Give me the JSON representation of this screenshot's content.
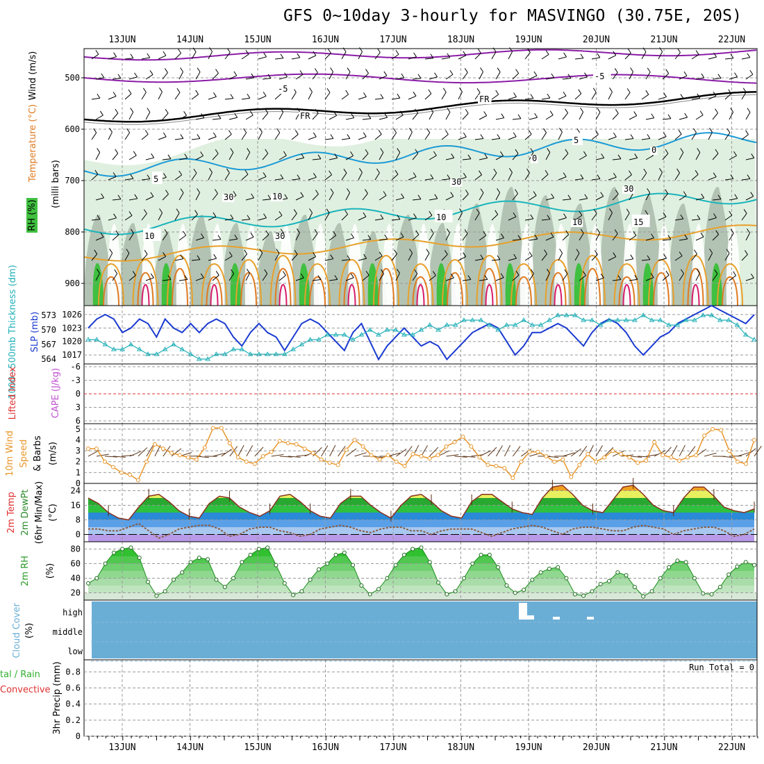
{
  "title": "GFS 0~10day 3-hourly for MASVINGO (30.75E, 20S)",
  "dates": [
    "13JUN",
    "14JUN",
    "15JUN",
    "16JUN",
    "17JUN",
    "18JUN",
    "19JUN",
    "20JUN",
    "21JUN",
    "22JUN"
  ],
  "colors": {
    "wind_barb": "#000000",
    "temp_purple": "#8a1aa6",
    "fr_line": "#000000",
    "temp_blue": "#1a9ad6",
    "temp_cyan": "#18b4bc",
    "temp_orange": "#e8a02a",
    "temp_darkorange": "#e07a20",
    "temp_red": "#d81a6a",
    "rh_light": "#e0f0e0",
    "rh_mid": "#a8b8a8",
    "rh_green": "#40c040",
    "slp_line": "#1a3ad0",
    "thk_line": "#22b0b8",
    "wind10": "#e8962a",
    "barb10": "#5a3418",
    "cloud": "#6aaed6",
    "precip_label_green": "#30b030",
    "precip_label_red": "#e03030",
    "lifted_red": "#e03030",
    "cape_violet": "#c050d0"
  },
  "panels": {
    "upper": {
      "ylabel_wind": "Wind (m/s)",
      "ylabel_temp": "Temperature (°C)",
      "ylabel_rh": "RH (%)",
      "ylabel_units": "(milli bars)",
      "yticks": [
        "500",
        "600",
        "700",
        "800",
        "900"
      ],
      "contour_labels": [
        "-5",
        "-5",
        "FR",
        "FR",
        "5",
        "5",
        "10",
        "10",
        "15",
        "0",
        "0",
        "10",
        "30",
        "30",
        "30",
        "30",
        "10"
      ]
    },
    "slp": {
      "ylabel_thk": "1000~500mb Thickness (dm)",
      "ylabel_slp": "SLP (mb)",
      "left_ticks": [
        "573",
        "570",
        "567",
        "564"
      ],
      "right_ticks": [
        "1026",
        "1023",
        "1020",
        "1017"
      ]
    },
    "cape": {
      "ylabel_li": "Lifted Index",
      "ylabel_cape": "CAPE (J/kg)",
      "ticks": [
        "-6",
        "-3",
        "0",
        "3",
        "6"
      ]
    },
    "wind10": {
      "ylabel_a": "10m Wind",
      "ylabel_b": "Speed",
      "ylabel_c": "& Barbs",
      "ylabel_d": "(m/s)",
      "ticks": [
        "5",
        "4",
        "3",
        "2",
        "1",
        "0"
      ]
    },
    "temp2m": {
      "ylabel_a": "2m Temp",
      "ylabel_b": "2m DewPt",
      "ylabel_c": "(6hr Min/Max)",
      "ylabel_d": "(°C)",
      "ticks": [
        "24",
        "16",
        "8",
        "0"
      ]
    },
    "rh2m": {
      "ylabel_a": "2m RH",
      "ylabel_b": "(%)",
      "ticks": [
        "80",
        "60",
        "40",
        "20"
      ]
    },
    "cloud": {
      "ylabel_a": "Cloud Cover",
      "ylabel_b": "(%)",
      "ticks": [
        "high",
        "middle",
        "low"
      ]
    },
    "precip": {
      "ylabel_a": "tal / Rain",
      "ylabel_b": "Convective",
      "ylabel_c": "3hr Precip (mm)",
      "ticks": [
        "0.8",
        "0.6",
        "0.4",
        "0.2",
        "0"
      ],
      "run_total": "Run Total = 0"
    }
  },
  "chart_data": [
    {
      "type": "line",
      "name": "upper-air",
      "x": [
        "13JUN",
        "14JUN",
        "15JUN",
        "16JUN",
        "17JUN",
        "18JUN",
        "19JUN",
        "20JUN",
        "21JUN",
        "22JUN"
      ],
      "ylim": [
        450,
        950
      ],
      "note_values": {
        "freezing_level_mb": [
          575,
          595,
          590,
          575,
          565,
          560,
          550,
          545,
          555,
          580
        ]
      }
    },
    {
      "type": "line",
      "name": "SLP (mb)",
      "ylim": [
        1015,
        1028
      ],
      "values": [
        1023,
        1025,
        1026,
        1025,
        1022,
        1023,
        1025,
        1024,
        1021,
        1025,
        1023,
        1022,
        1024,
        1022,
        1024,
        1025,
        1024,
        1021,
        1019,
        1022,
        1024,
        1022,
        1021,
        1018,
        1021,
        1024,
        1025,
        1024,
        1022,
        1020,
        1018,
        1022,
        1024,
        1020,
        1016,
        1019,
        1021,
        1023,
        1021,
        1019,
        1020,
        1019,
        1016,
        1018,
        1020,
        1022,
        1023,
        1024,
        1023,
        1020,
        1017,
        1019,
        1022,
        1022,
        1023,
        1024,
        1023,
        1021,
        1019,
        1022,
        1024,
        1025,
        1024,
        1022,
        1019,
        1017,
        1019,
        1021,
        1022,
        1024,
        1025,
        1026,
        1027,
        1028,
        1027,
        1026,
        1025,
        1024,
        1026
      ]
    },
    {
      "type": "line",
      "name": "1000~500mb Thickness (dm)",
      "ylim": [
        563,
        575
      ],
      "values": [
        568,
        568,
        567,
        566,
        566,
        567,
        566,
        565,
        565,
        566,
        567,
        566,
        565,
        564,
        564,
        565,
        565,
        566,
        566,
        565,
        565,
        565,
        565,
        565,
        566,
        567,
        568,
        568,
        569,
        569,
        569,
        568,
        569,
        570,
        569,
        570,
        570,
        569,
        569,
        570,
        571,
        570,
        571,
        571,
        572,
        572,
        572,
        571,
        570,
        571,
        571,
        572,
        571,
        571,
        572,
        573,
        573,
        573,
        572,
        572,
        571,
        572,
        572,
        572,
        572,
        573,
        572,
        572,
        571,
        571,
        572,
        572,
        573,
        573,
        572,
        572,
        571,
        569,
        568
      ]
    },
    {
      "type": "line",
      "name": "10m Wind Speed (m/s)",
      "ylim": [
        0,
        5.5
      ],
      "values": [
        3.2,
        3.2,
        2.0,
        1.5,
        1.0,
        0.8,
        0.3,
        2.0,
        3.6,
        3.2,
        2.8,
        2.6,
        2.4,
        2.2,
        3.3,
        5.1,
        5.1,
        3.7,
        2.4,
        2.0,
        1.8,
        2.5,
        2.9,
        3.9,
        3.7,
        3.6,
        3.2,
        2.8,
        2.2,
        1.9,
        1.7,
        3.1,
        4.0,
        3.4,
        2.6,
        2.2,
        2.6,
        2.0,
        1.6,
        2.7,
        2.5,
        2.3,
        2.6,
        3.4,
        3.8,
        4.3,
        3.4,
        2.4,
        1.7,
        1.6,
        1.4,
        0.5,
        2.0,
        2.9,
        2.9,
        2.5,
        2.0,
        2.2,
        0.6,
        1.7,
        2.7,
        2.0,
        2.4,
        3.0,
        2.7,
        2.4,
        1.9,
        2.1,
        3.8,
        2.6,
        2.4,
        2.1,
        2.4,
        2.6,
        4.4,
        5.0,
        4.9,
        3.0,
        2.0,
        1.8,
        4.0
      ]
    },
    {
      "type": "area",
      "name": "2m Temp (°C)",
      "ylim": [
        -4,
        28
      ],
      "values": [
        20,
        17,
        12,
        9,
        8,
        15,
        21,
        22,
        18,
        13,
        10,
        9,
        17,
        21,
        20,
        15,
        12,
        10,
        13,
        21,
        22,
        18,
        13,
        10,
        9,
        17,
        21,
        21,
        16,
        12,
        9,
        16,
        21,
        22,
        18,
        13,
        10,
        9,
        18,
        22,
        22,
        18,
        14,
        12,
        11,
        20,
        26,
        27,
        22,
        16,
        13,
        12,
        19,
        26,
        27,
        22,
        16,
        13,
        12,
        20,
        26,
        26,
        21,
        15,
        13,
        12,
        14
      ]
    },
    {
      "type": "line",
      "name": "2m DewPt (°C)",
      "ylim": [
        -4,
        28
      ],
      "values": [
        3,
        3,
        2,
        2,
        4,
        6,
        2,
        -2,
        0,
        3,
        4,
        5,
        5,
        3,
        -1,
        0,
        3,
        4,
        4,
        2,
        1,
        -1,
        0,
        3,
        4,
        5,
        4,
        2,
        1,
        3,
        4,
        4,
        2,
        2,
        0,
        2,
        3,
        3,
        3,
        1,
        -1,
        1,
        3,
        4,
        5,
        4,
        2,
        0,
        3,
        4,
        4,
        3,
        2,
        2,
        4,
        5,
        4,
        3,
        0,
        2,
        3,
        4,
        4,
        2,
        -1,
        0,
        3
      ]
    },
    {
      "type": "area",
      "name": "2m RH (%)",
      "ylim": [
        10,
        90
      ],
      "values": [
        33,
        40,
        60,
        75,
        80,
        82,
        68,
        35,
        16,
        22,
        38,
        48,
        62,
        68,
        66,
        38,
        28,
        40,
        62,
        72,
        80,
        82,
        58,
        33,
        17,
        22,
        38,
        52,
        60,
        72,
        75,
        58,
        30,
        18,
        25,
        40,
        58,
        72,
        80,
        82,
        62,
        34,
        18,
        22,
        40,
        60,
        72,
        72,
        55,
        30,
        20,
        24,
        38,
        48,
        53,
        55,
        40,
        18,
        16,
        22,
        32,
        36,
        48,
        44,
        28,
        15,
        22,
        40,
        55,
        64,
        62,
        40,
        19,
        18,
        28,
        45,
        56,
        62,
        58
      ]
    },
    {
      "type": "bar",
      "name": "Cloud Cover (%)",
      "categories": [
        "high",
        "middle",
        "low"
      ],
      "values": [
        0,
        0,
        0
      ]
    },
    {
      "type": "bar",
      "name": "3hr Precip (mm)",
      "ylim": [
        0,
        0.95
      ],
      "values": [
        0
      ]
    }
  ]
}
